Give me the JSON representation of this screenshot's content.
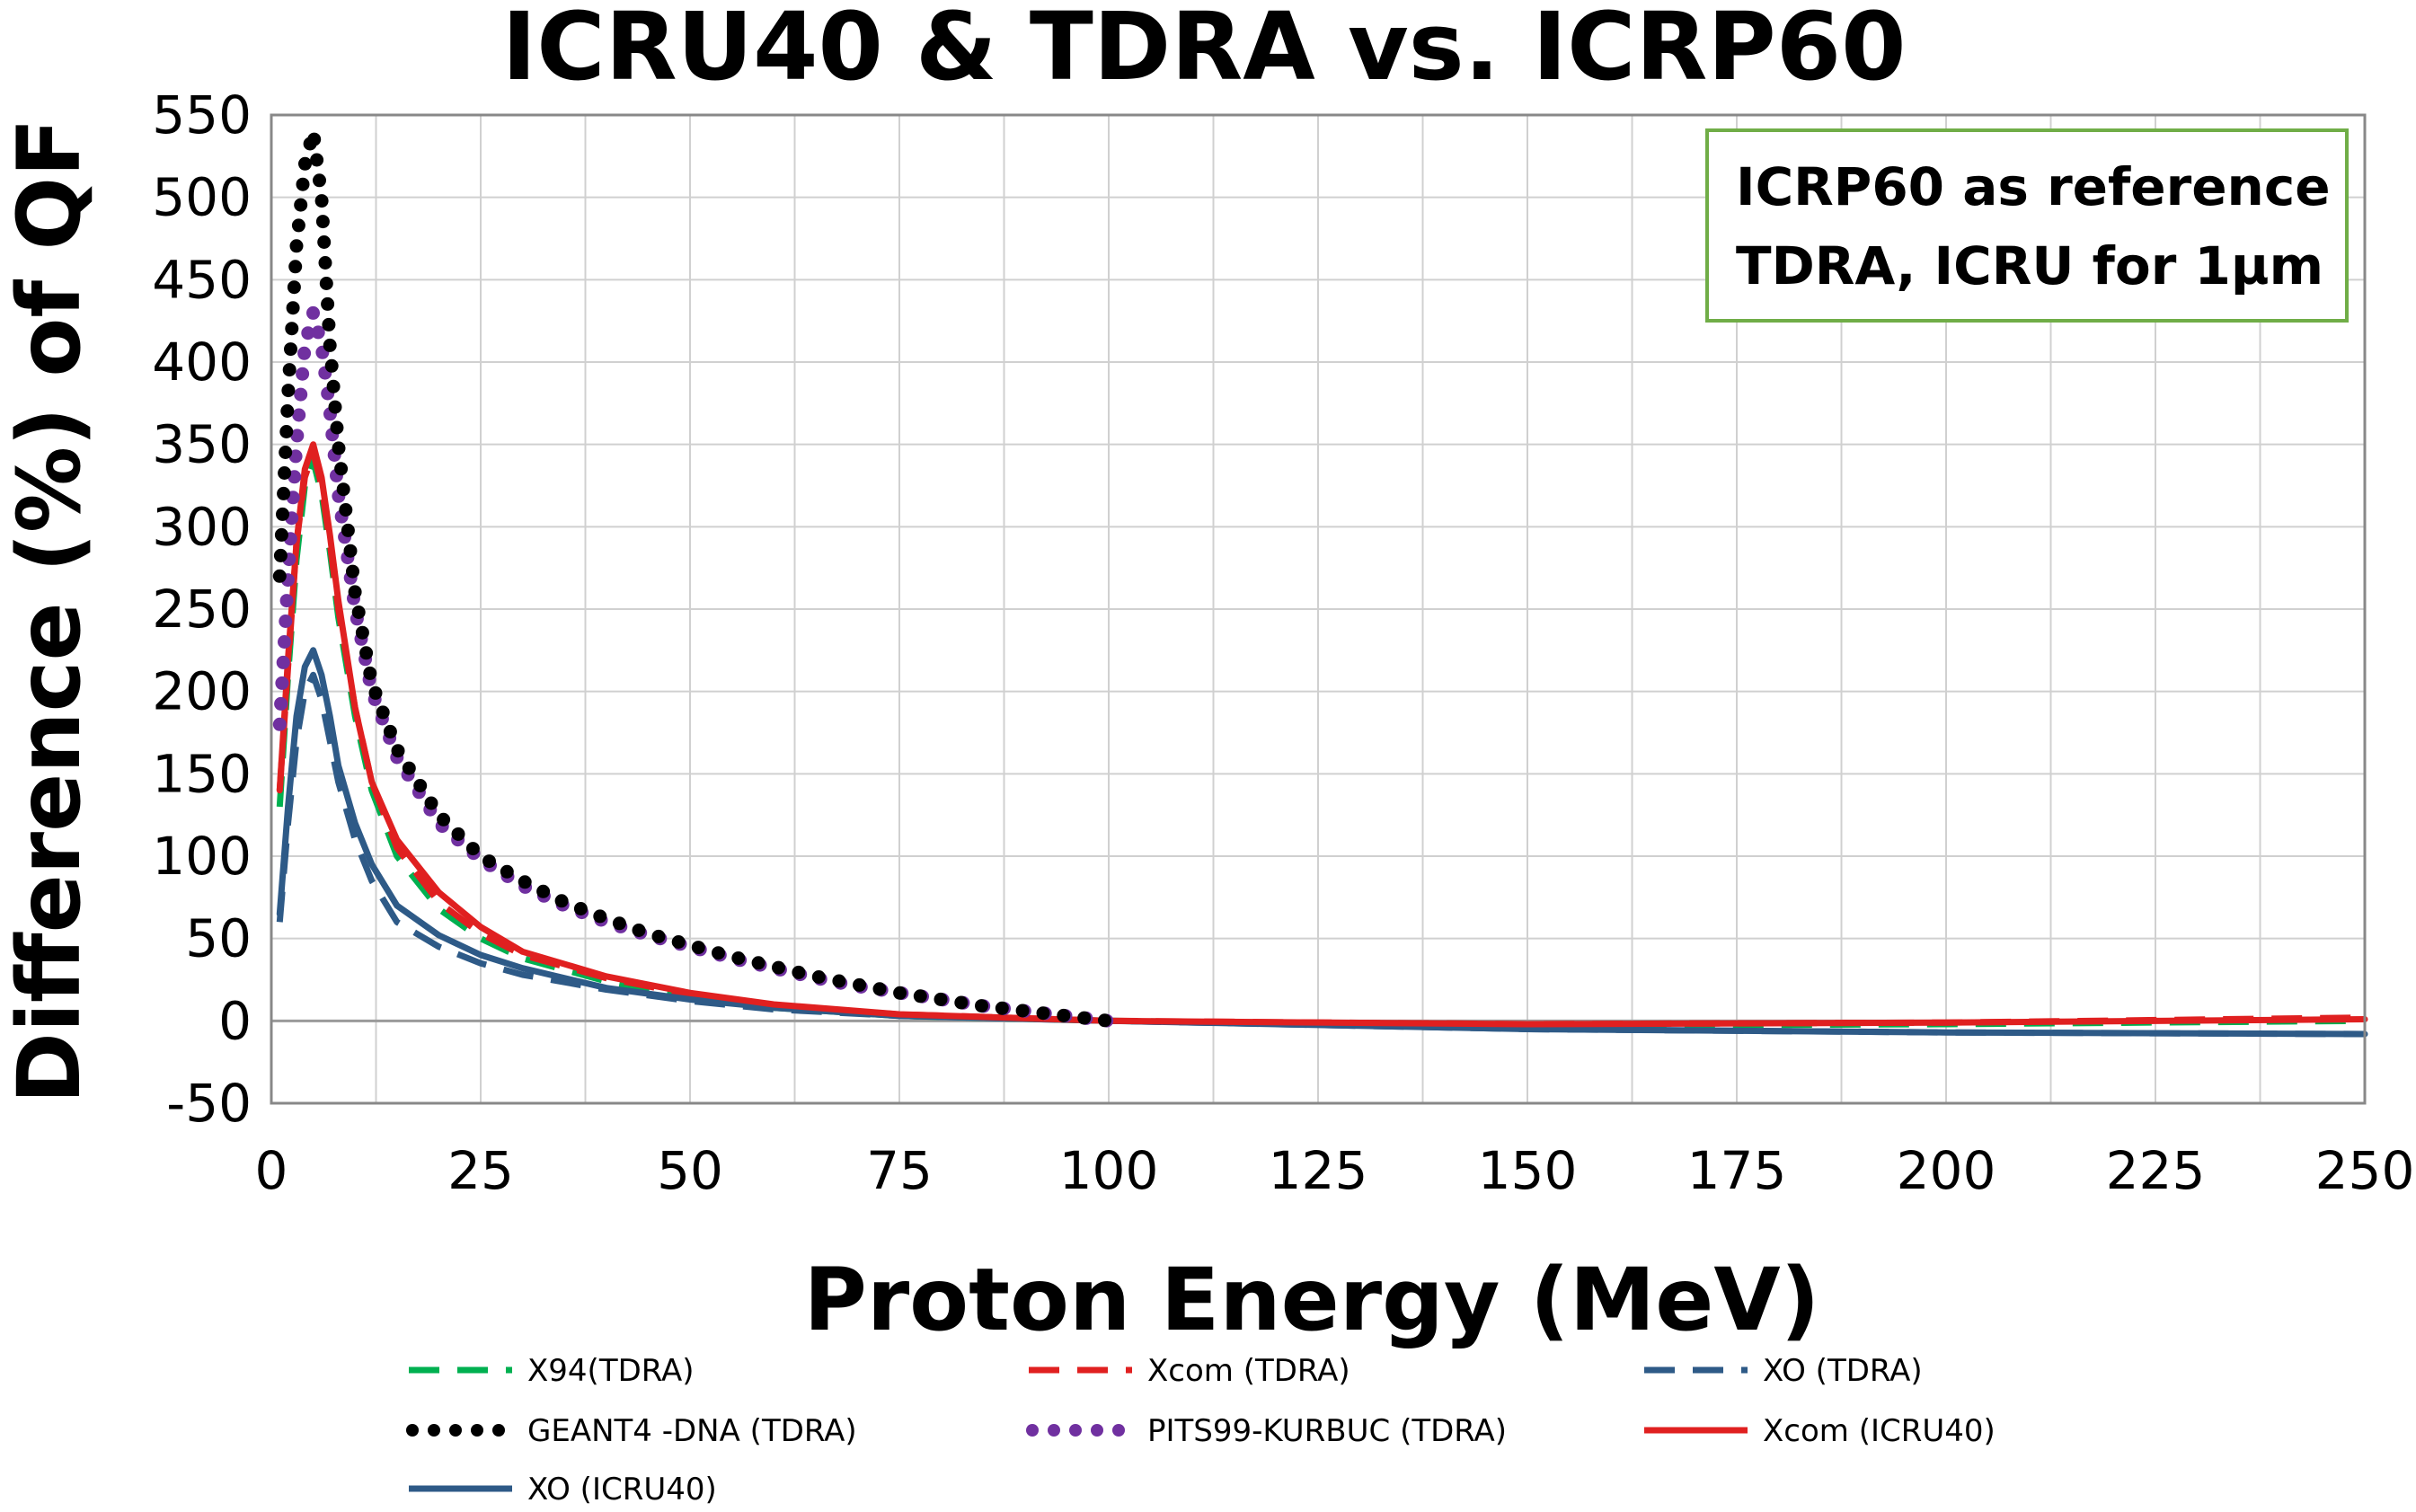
{
  "chart_data": {
    "type": "line",
    "title": "ICRU40 & TDRA vs. ICRP60",
    "xlabel": "Proton Energy (MeV)",
    "ylabel": "Difference (%) of QF",
    "xlim": [
      0,
      250
    ],
    "ylim": [
      -50,
      550
    ],
    "xticks": [
      0,
      25,
      50,
      75,
      100,
      125,
      150,
      175,
      200,
      225,
      250
    ],
    "yticks": [
      -50,
      0,
      50,
      100,
      150,
      200,
      250,
      300,
      350,
      400,
      450,
      500,
      550
    ],
    "grid": true,
    "annotation": [
      "ICRP60 as reference",
      "TDRA, ICRU for 1µm"
    ],
    "annotation_color": "#70ad47",
    "legend_position": "bottom",
    "series": [
      {
        "name": "X94(TDRA)",
        "color": "#00b050",
        "style": "dashed",
        "x": [
          1,
          2,
          3,
          4,
          5,
          6,
          7,
          8,
          10,
          12,
          15,
          20,
          25,
          30,
          40,
          50,
          60,
          75,
          100,
          150,
          200,
          250
        ],
        "y": [
          130,
          210,
          280,
          325,
          340,
          320,
          285,
          245,
          185,
          140,
          100,
          68,
          50,
          38,
          24,
          14,
          8,
          3,
          0,
          -3,
          -2,
          0
        ]
      },
      {
        "name": "Xcom (TDRA)",
        "color": "#e02020",
        "style": "dashed",
        "x": [
          1,
          2,
          3,
          4,
          5,
          6,
          7,
          8,
          10,
          12,
          15,
          20,
          25,
          30,
          40,
          50,
          60,
          75,
          100,
          150,
          200,
          250
        ],
        "y": [
          140,
          215,
          290,
          330,
          345,
          325,
          290,
          250,
          190,
          145,
          105,
          72,
          53,
          40,
          26,
          16,
          9,
          4,
          0,
          -2,
          -1,
          2
        ]
      },
      {
        "name": "XO (TDRA)",
        "color": "#2e5a87",
        "style": "dashed",
        "x": [
          1,
          2,
          3,
          4,
          5,
          6,
          7,
          8,
          10,
          12,
          15,
          20,
          25,
          30,
          40,
          50,
          60,
          75,
          100,
          150,
          200,
          250
        ],
        "y": [
          60,
          120,
          170,
          200,
          210,
          195,
          170,
          145,
          110,
          85,
          60,
          45,
          35,
          28,
          19,
          12,
          7,
          3,
          0,
          -5,
          -7,
          -8
        ]
      },
      {
        "name": "GEANT4 -DNA (TDRA)",
        "color": "#000000",
        "style": "dotted",
        "x": [
          1,
          2,
          3,
          4,
          5,
          6,
          7,
          8,
          10,
          12,
          15,
          20,
          25,
          30,
          35,
          40,
          45,
          50,
          55,
          60,
          65,
          70,
          75,
          80,
          85,
          90,
          95,
          100
        ],
        "y": [
          270,
          380,
          470,
          520,
          540,
          500,
          410,
          350,
          260,
          205,
          165,
          125,
          100,
          85,
          72,
          62,
          53,
          46,
          39,
          33,
          27,
          22,
          17,
          13,
          9,
          6,
          3,
          0
        ]
      },
      {
        "name": "PITS99-KURBUC (TDRA)",
        "color": "#7030a0",
        "style": "dotted",
        "x": [
          1,
          2,
          3,
          4,
          5,
          6,
          7,
          8,
          10,
          12,
          15,
          20,
          25,
          30,
          35,
          40,
          45,
          50,
          55,
          60,
          65,
          70,
          75,
          80,
          85,
          90,
          95,
          100
        ],
        "y": [
          180,
          270,
          350,
          410,
          430,
          410,
          370,
          320,
          250,
          200,
          160,
          120,
          98,
          82,
          70,
          60,
          52,
          45,
          38,
          32,
          26,
          21,
          17,
          13,
          9,
          6,
          3,
          0
        ]
      },
      {
        "name": "Xcom (ICRU40)",
        "color": "#e02020",
        "style": "solid",
        "x": [
          1,
          2,
          3,
          4,
          5,
          6,
          7,
          8,
          10,
          12,
          15,
          20,
          25,
          30,
          40,
          50,
          60,
          75,
          100,
          150,
          200,
          250
        ],
        "y": [
          140,
          220,
          290,
          335,
          350,
          330,
          295,
          255,
          190,
          145,
          110,
          78,
          57,
          42,
          27,
          17,
          10,
          4,
          0,
          -2,
          -1,
          1
        ]
      },
      {
        "name": "XO (ICRU40)",
        "color": "#2e5a87",
        "style": "solid",
        "x": [
          1,
          2,
          3,
          4,
          5,
          6,
          7,
          8,
          10,
          12,
          15,
          20,
          25,
          30,
          40,
          50,
          60,
          75,
          100,
          150,
          200,
          250
        ],
        "y": [
          65,
          130,
          185,
          215,
          225,
          210,
          185,
          155,
          120,
          95,
          70,
          52,
          40,
          32,
          20,
          13,
          8,
          3,
          0,
          -5,
          -7,
          -8
        ]
      }
    ]
  }
}
